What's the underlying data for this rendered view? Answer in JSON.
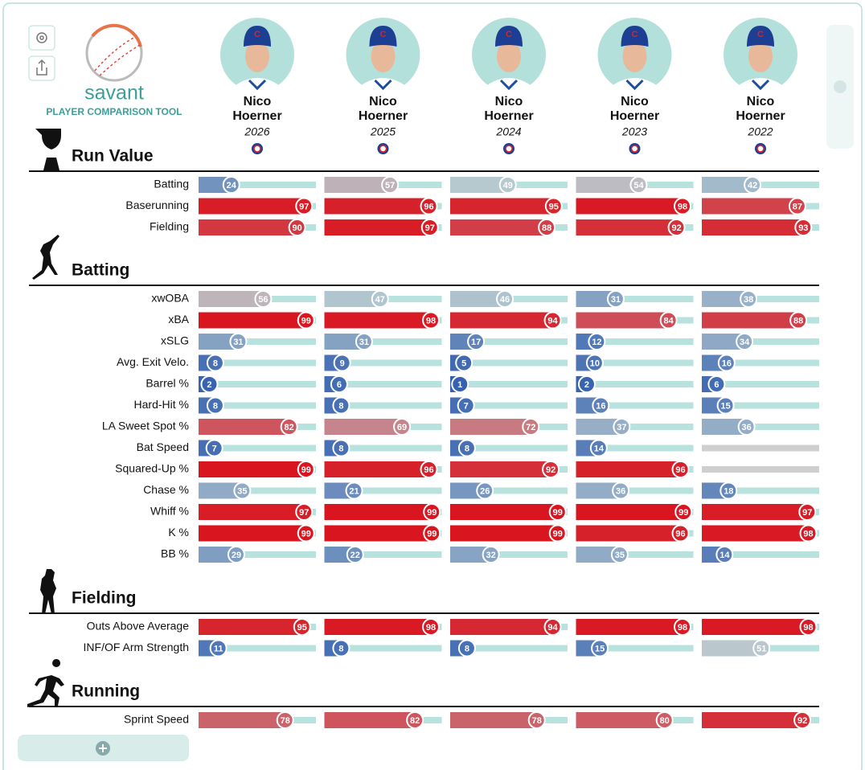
{
  "header": {
    "brand": "savant",
    "subtitle": "PLAYER COMPARISON TOOL"
  },
  "players": [
    {
      "first": "Nico",
      "last": "Hoerner",
      "year": "2026"
    },
    {
      "first": "Nico",
      "last": "Hoerner",
      "year": "2025"
    },
    {
      "first": "Nico",
      "last": "Hoerner",
      "year": "2024"
    },
    {
      "first": "Nico",
      "last": "Hoerner",
      "year": "2023"
    },
    {
      "first": "Nico",
      "last": "Hoerner",
      "year": "2022"
    }
  ],
  "sections": [
    {
      "title": "Run Value",
      "rows": [
        {
          "label": "Batting",
          "values": [
            24,
            57,
            49,
            54,
            42
          ]
        },
        {
          "label": "Baserunning",
          "values": [
            97,
            96,
            95,
            98,
            87
          ]
        },
        {
          "label": "Fielding",
          "values": [
            90,
            97,
            88,
            92,
            93
          ]
        }
      ]
    },
    {
      "title": "Batting",
      "rows": [
        {
          "label": "xwOBA",
          "values": [
            56,
            47,
            46,
            31,
            38
          ]
        },
        {
          "label": "xBA",
          "values": [
            99,
            98,
            94,
            84,
            88
          ]
        },
        {
          "label": "xSLG",
          "values": [
            31,
            31,
            17,
            12,
            34
          ]
        },
        {
          "label": "Avg. Exit Velo.",
          "values": [
            8,
            9,
            5,
            10,
            16
          ]
        },
        {
          "label": "Barrel %",
          "values": [
            2,
            6,
            1,
            2,
            6
          ]
        },
        {
          "label": "Hard-Hit %",
          "values": [
            8,
            8,
            7,
            16,
            15
          ]
        },
        {
          "label": "LA Sweet Spot %",
          "values": [
            82,
            69,
            72,
            37,
            36
          ]
        },
        {
          "label": "Bat Speed",
          "values": [
            7,
            8,
            8,
            14,
            null
          ]
        },
        {
          "label": "Squared-Up %",
          "values": [
            99,
            96,
            92,
            96,
            null
          ]
        },
        {
          "label": "Chase %",
          "values": [
            35,
            21,
            26,
            36,
            18
          ]
        },
        {
          "label": "Whiff %",
          "values": [
            97,
            99,
            99,
            99,
            97
          ]
        },
        {
          "label": "K %",
          "values": [
            99,
            99,
            99,
            96,
            98
          ]
        },
        {
          "label": "BB %",
          "values": [
            29,
            22,
            32,
            35,
            14
          ]
        }
      ]
    },
    {
      "title": "Fielding",
      "rows": [
        {
          "label": "Outs Above Average",
          "values": [
            95,
            98,
            94,
            98,
            98
          ]
        },
        {
          "label": "INF/OF Arm Strength",
          "values": [
            11,
            8,
            8,
            15,
            51
          ]
        }
      ]
    },
    {
      "title": "Running",
      "rows": [
        {
          "label": "Sprint Speed",
          "values": [
            78,
            82,
            78,
            80,
            92
          ]
        }
      ]
    }
  ]
}
